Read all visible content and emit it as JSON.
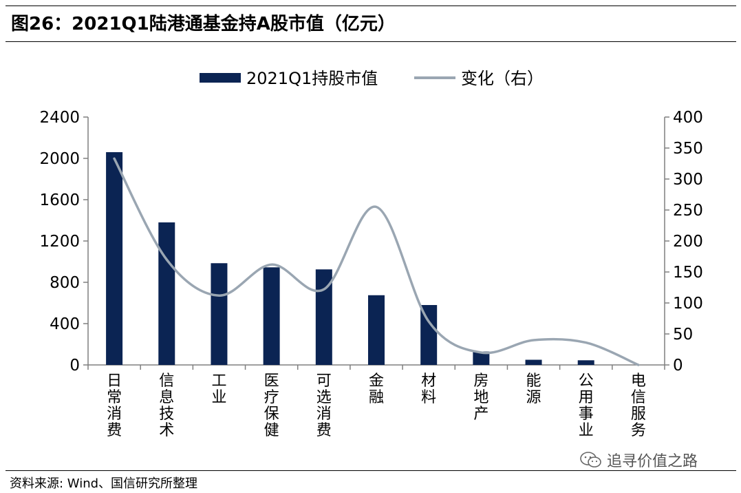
{
  "header": {
    "title": "图26：2021Q1陆港通基金持A股市值（亿元）"
  },
  "footer": {
    "source": "资料来源: Wind、国信研究所整理",
    "watermark": "追寻价值之路"
  },
  "colors": {
    "bar": "#0b2453",
    "line": "#9aa6b2",
    "axis": "#7f7f7f"
  },
  "chart_data": {
    "type": "bar",
    "categories": [
      "日常消费",
      "信息技术",
      "工业",
      "医疗保健",
      "可选消费",
      "金融",
      "材料",
      "房地产",
      "能源",
      "公用事业",
      "电信服务"
    ],
    "series": [
      {
        "name": "2021Q1持股市值",
        "type": "bar",
        "axis": "left",
        "values": [
          2060,
          1380,
          985,
          945,
          925,
          675,
          580,
          130,
          50,
          45,
          0
        ]
      },
      {
        "name": "变化（右）",
        "type": "line",
        "axis": "right",
        "values": [
          333,
          170,
          112,
          162,
          122,
          255,
          70,
          20,
          40,
          36,
          0
        ]
      }
    ],
    "y_left": {
      "min": 0,
      "max": 2400,
      "ticks": [
        0,
        400,
        800,
        1200,
        1600,
        2000,
        2400
      ]
    },
    "y_right": {
      "min": 0,
      "max": 400,
      "ticks": [
        0,
        50,
        100,
        150,
        200,
        250,
        300,
        350,
        400
      ]
    },
    "legend_position": "top",
    "grid": false
  }
}
